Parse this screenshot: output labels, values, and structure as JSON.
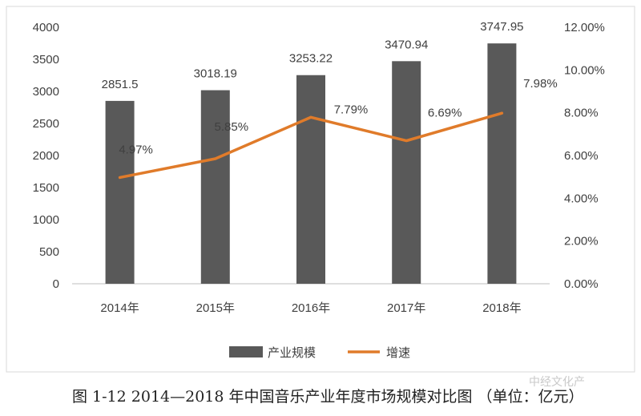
{
  "chart_data": {
    "type": "bar+line",
    "categories": [
      "2014年",
      "2015年",
      "2016年",
      "2017年",
      "2018年"
    ],
    "series": [
      {
        "name": "产业规模",
        "type": "bar",
        "axis": "left",
        "values": [
          2851.5,
          3018.19,
          3253.22,
          3470.94,
          3747.95
        ],
        "labels": [
          "2851.5",
          "3018.19",
          "3253.22",
          "3470.94",
          "3747.95"
        ],
        "color": "#595959"
      },
      {
        "name": "增速",
        "type": "line",
        "axis": "right",
        "values": [
          4.97,
          5.85,
          7.79,
          6.69,
          7.98
        ],
        "labels": [
          "4.97%",
          "5.85%",
          "7.79%",
          "6.69%",
          "7.98%"
        ],
        "color": "#e07b2a"
      }
    ],
    "y_left": {
      "min": 0,
      "max": 4000,
      "ticks": [
        0,
        500,
        1000,
        1500,
        2000,
        2500,
        3000,
        3500,
        4000
      ],
      "tick_labels": [
        "0",
        "500",
        "1000",
        "1500",
        "2000",
        "2500",
        "3000",
        "3500",
        "4000"
      ]
    },
    "y_right": {
      "min": 0,
      "max": 12,
      "ticks": [
        0,
        2,
        4,
        6,
        8,
        10,
        12
      ],
      "tick_labels": [
        "0.00%",
        "2.00%",
        "4.00%",
        "6.00%",
        "8.00%",
        "10.00%",
        "12.00%"
      ]
    },
    "legend": {
      "placement": "bottom"
    },
    "grid": false
  },
  "caption": "图 1-12  2014—2018 年中国音乐产业年度市场规模对比图  （单位：亿元）",
  "watermark": "中经文化产"
}
